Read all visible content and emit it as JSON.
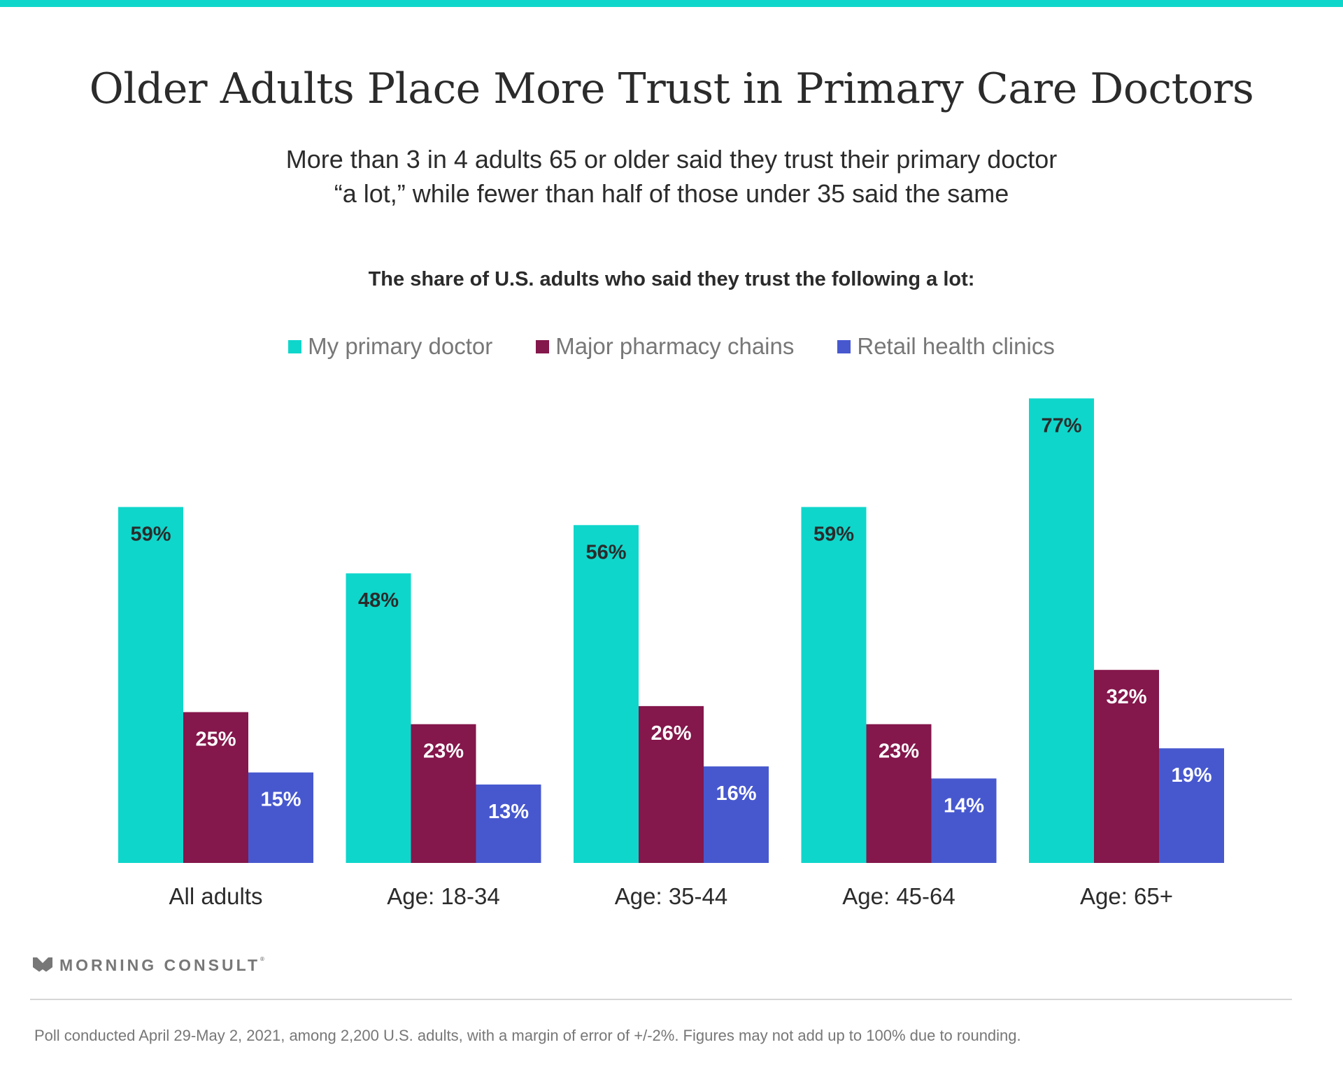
{
  "header": {
    "title": "Older Adults Place More Trust in Primary Care Doctors",
    "subtitle_line1": "More than 3 in 4 adults 65 or older said they trust their primary doctor",
    "subtitle_line2": "“a lot,” while fewer than half of those under 35 said the same"
  },
  "colors": {
    "accent": "#0fd6cb",
    "primary_doctor": "#0fd6cb",
    "pharmacy": "#84174b",
    "retail": "#4758cf",
    "text": "#2b2b2b",
    "muted": "#777777"
  },
  "chart_data": {
    "type": "bar",
    "title": "The share of U.S. adults who said they trust the following a lot:",
    "xlabel": "",
    "ylabel": "",
    "ylim": [
      0,
      100
    ],
    "grid": false,
    "legend_position": "top-center",
    "categories": [
      "All adults",
      "Age: 18-34",
      "Age: 35-44",
      "Age: 45-64",
      "Age: 65+"
    ],
    "series": [
      {
        "name": "My primary doctor",
        "color": "#0fd6cb",
        "label_color": "#2b2b2b",
        "values": [
          59,
          48,
          56,
          59,
          77
        ]
      },
      {
        "name": "Major pharmacy chains",
        "color": "#84174b",
        "label_color": "#ffffff",
        "values": [
          25,
          23,
          26,
          23,
          32
        ]
      },
      {
        "name": "Retail health clinics",
        "color": "#4758cf",
        "label_color": "#ffffff",
        "values": [
          15,
          13,
          16,
          14,
          19
        ]
      }
    ],
    "value_suffix": "%"
  },
  "footer": {
    "brand": "MORNING CONSULT",
    "note": "Poll conducted April 29-May 2, 2021, among 2,200 U.S. adults, with a margin of error of +/-2%. Figures may not add up to 100% due to rounding."
  }
}
